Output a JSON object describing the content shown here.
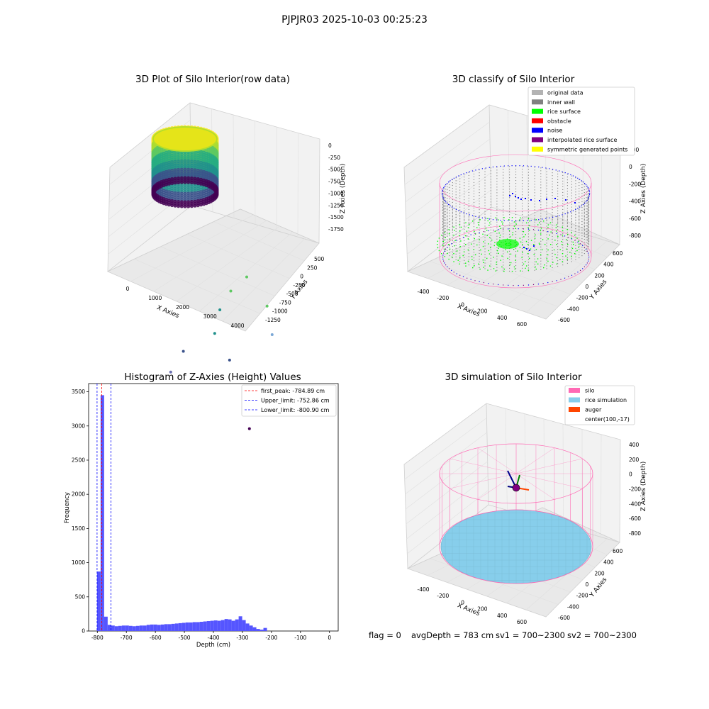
{
  "figure": {
    "title": "PJPJR03 2025-10-03 00:25:23",
    "footer": {
      "flag": "flag = 0",
      "avg_depth": "avgDepth = 783 cm",
      "sv1": "sv1 = 700~2300",
      "sv2": "sv2 = 700~2300"
    }
  },
  "colors": {
    "original_data": "#b3b3b3",
    "inner_wall": "#808080",
    "rice_surface": "#00ff00",
    "obstacle": "#ff0000",
    "noise": "#0000ff",
    "interpolated_rice_surface": "#800080",
    "symmetric_generated_points": "#ffff00",
    "silo": "#ff69b4",
    "rice_simulation": "#87ceeb",
    "auger": "#ff4500",
    "histogram_bar": "#5555ff",
    "first_peak_line": "#ff0000",
    "limit_lines": "#0000ff"
  },
  "chart_data": [
    {
      "type": "scatter",
      "title": "3D Plot of Silo Interior(row data)",
      "xlabel": "X Axies",
      "ylabel": "Y Axies",
      "zlabel": "Z Axies (Depth)",
      "x_ticks": [
        "0",
        "1000",
        "2000",
        "3000",
        "4000"
      ],
      "y_ticks": [
        "-1250",
        "-1000",
        "-750",
        "-500",
        "-250",
        "0",
        "250",
        "500"
      ],
      "z_ticks": [
        "0",
        "-250",
        "-500",
        "-750",
        "-1000",
        "-1250",
        "-1500",
        "-1750"
      ],
      "colormap": "viridis",
      "outlier_points": [
        {
          "x": 1700,
          "y": 250,
          "z": -500
        },
        {
          "x": 2600,
          "y": 100,
          "z": -700
        },
        {
          "x": 3000,
          "y": -50,
          "z": -1000
        },
        {
          "x": 1100,
          "y": 300,
          "z": -900
        },
        {
          "x": 900,
          "y": 200,
          "z": -1200
        },
        {
          "x": 1200,
          "y": -100,
          "z": -1350
        },
        {
          "x": 2000,
          "y": -300,
          "z": -1500
        },
        {
          "x": 800,
          "y": -500,
          "z": -1500
        },
        {
          "x": 700,
          "y": -700,
          "z": -1750
        },
        {
          "x": 3900,
          "y": -1100,
          "z": -1750
        }
      ]
    },
    {
      "type": "scatter",
      "title": "3D classify of Silo Interior",
      "xlabel": "X Axies",
      "ylabel": "Y Axies",
      "zlabel": "Z Axies (Depth)",
      "x_ticks": [
        "-400",
        "-200",
        "0",
        "200",
        "400",
        "600"
      ],
      "y_ticks": [
        "-600",
        "-400",
        "-200",
        "0",
        "200",
        "400",
        "600"
      ],
      "z_ticks": [
        "200",
        "0",
        "-200",
        "-400",
        "-600",
        "-800"
      ],
      "legend": [
        "original data",
        "inner wall",
        "rice surface",
        "obstacle",
        "noise",
        "interpolated rice surface",
        "symmetric generated points"
      ],
      "legend_position": "top-right"
    },
    {
      "type": "bar",
      "title": "Histogram of Z-Axies (Height) Values",
      "xlabel": "Depth (cm)",
      "ylabel": "Frequency",
      "xlim": [
        -830,
        30
      ],
      "ylim": [
        0,
        3620
      ],
      "x_ticks": [
        -800,
        -700,
        -600,
        -500,
        -400,
        -300,
        -200,
        -100,
        0
      ],
      "y_ticks": [
        0,
        500,
        1000,
        1500,
        2000,
        2500,
        3000,
        3500
      ],
      "bin_start": -801,
      "bin_width": 12.2,
      "values": [
        870,
        3450,
        210,
        90,
        80,
        70,
        75,
        80,
        80,
        75,
        70,
        75,
        80,
        80,
        90,
        95,
        95,
        90,
        95,
        100,
        100,
        105,
        110,
        115,
        120,
        125,
        125,
        130,
        130,
        135,
        140,
        145,
        150,
        155,
        150,
        160,
        175,
        170,
        150,
        170,
        215,
        160,
        110,
        80,
        55,
        30,
        20,
        45
      ],
      "lines": [
        {
          "label": "first_peak: -784.89 cm",
          "x": -784.89,
          "style": "dashed"
        },
        {
          "label": "Upper_limit: -752.86 cm",
          "x": -752.86,
          "style": "dashed"
        },
        {
          "label": "Lower_limit: -800.90 cm",
          "x": -800.9,
          "style": "dashed"
        }
      ],
      "legend_position": "top-right"
    },
    {
      "type": "scatter",
      "title": "3D simulation of Silo Interior",
      "xlabel": "X Axies",
      "ylabel": "Y Axies",
      "zlabel": "Z Axies (Depth)",
      "x_ticks": [
        "-400",
        "-200",
        "0",
        "200",
        "400",
        "600"
      ],
      "y_ticks": [
        "-600",
        "-400",
        "-200",
        "0",
        "200",
        "400",
        "600"
      ],
      "z_ticks": [
        "400",
        "200",
        "0",
        "-200",
        "-400",
        "-600",
        "-800"
      ],
      "legend": [
        "silo",
        "rice simulation",
        "auger",
        "center(100,-17)"
      ],
      "legend_position": "top-right"
    }
  ]
}
